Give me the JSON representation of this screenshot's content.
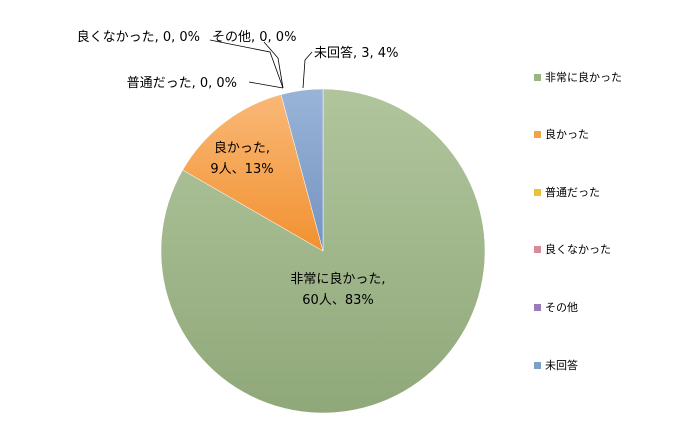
{
  "chart_data": {
    "type": "pie",
    "title": "",
    "series": [
      {
        "name": "非常に良かった",
        "value": 60,
        "percent": "83%",
        "color": "#9bb485"
      },
      {
        "name": "良かった",
        "value": 9,
        "percent": "13%",
        "color": "#f5a14a"
      },
      {
        "name": "普通だった",
        "value": 0,
        "percent": "0%",
        "color": "#e8c23a"
      },
      {
        "name": "良くなかった",
        "value": 0,
        "percent": "0%",
        "color": "#d98a9a"
      },
      {
        "name": "その他",
        "value": 0,
        "percent": "0%",
        "color": "#9b7bb7"
      },
      {
        "name": "未回答",
        "value": 3,
        "percent": "4%",
        "color": "#7f9ec8"
      }
    ],
    "data_labels": {
      "slice1_line1": "非常に良かった,",
      "slice1_line2": "60人、83%",
      "slice2_line1": "良かった,",
      "slice2_line2": "9人、13%",
      "slice3": "普通だった, 0, 0%",
      "slice4": "良くなかった, 0, 0%",
      "slice5": "その他, 0, 0%",
      "slice6": "未回答, 3, 4%"
    },
    "legend": {
      "position": "right"
    }
  }
}
